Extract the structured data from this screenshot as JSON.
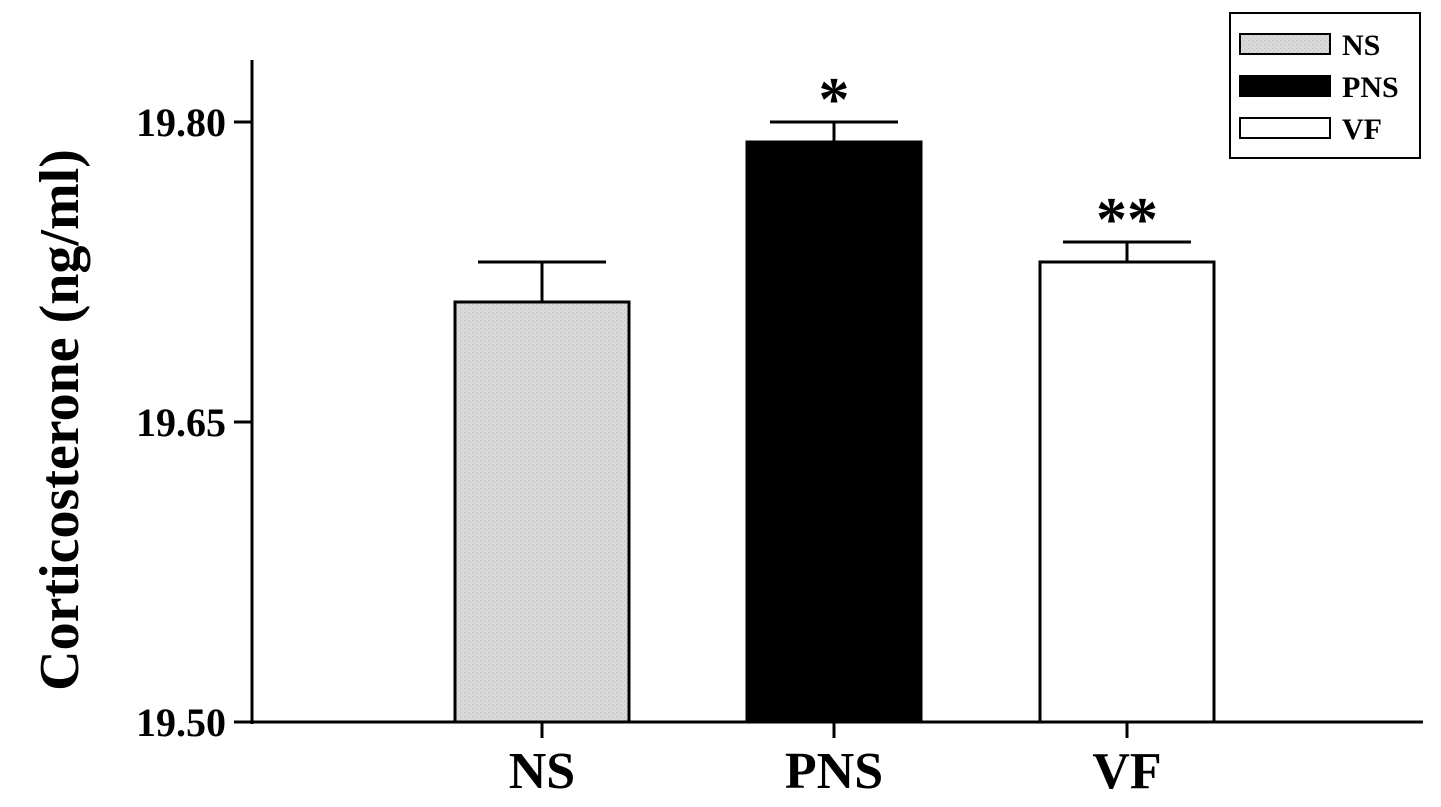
{
  "chart_data": {
    "type": "bar",
    "title": "",
    "xlabel": "",
    "ylabel": "Corticosterone (ng/ml)",
    "categories": [
      "NS",
      "PNS",
      "VF"
    ],
    "values": [
      19.71,
      19.79,
      19.73
    ],
    "errors": [
      0.02,
      0.01,
      0.01
    ],
    "significance": [
      "",
      "*",
      "**"
    ],
    "ylim": [
      19.5,
      19.83
    ],
    "yticks": [
      19.5,
      19.65,
      19.8
    ],
    "ytick_labels": [
      "19.50",
      "19.65",
      "19.80"
    ],
    "colors": [
      "#d4d4d4",
      "#000000",
      "#ffffff"
    ],
    "grid": false,
    "legend": {
      "placement": "top-right",
      "entries": [
        "NS",
        "PNS",
        "VF"
      ]
    }
  }
}
